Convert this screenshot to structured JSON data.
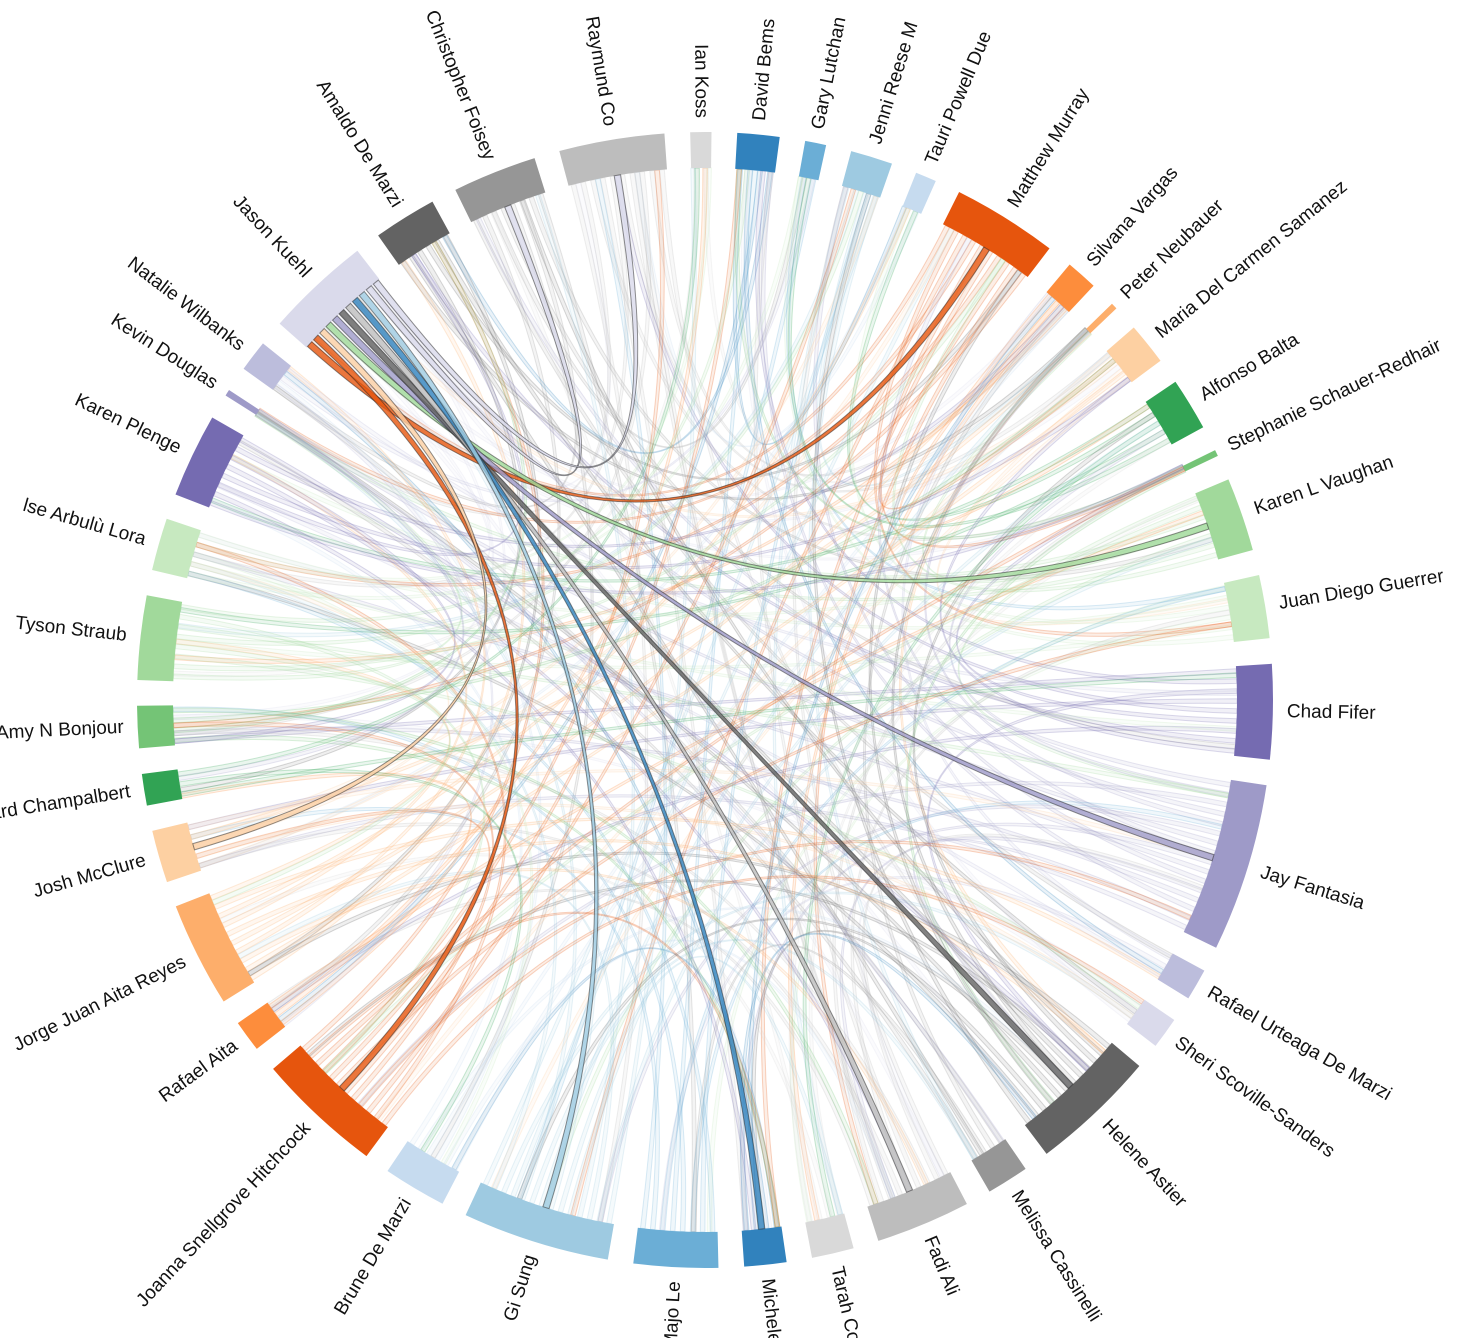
{
  "diagram": {
    "type": "chord",
    "nodes": [
      {
        "name": "Jason Kuehl",
        "color": "#dadaeb",
        "weight": 5
      },
      {
        "name": "Amaldo De Marzi",
        "color": "#636363",
        "weight": 3
      },
      {
        "name": "Christopher Foisey",
        "color": "#969696",
        "weight": 4
      },
      {
        "name": "Raymund Co",
        "color": "#bdbdbd",
        "weight": 5
      },
      {
        "name": "Ian Koss",
        "color": "#d9d9d9",
        "weight": 1
      },
      {
        "name": "David Bems",
        "color": "#3182bd",
        "weight": 2
      },
      {
        "name": "Gary Lutchan",
        "color": "#6baed6",
        "weight": 1
      },
      {
        "name": "Jenni Reese M",
        "color": "#9ecae1",
        "weight": 2
      },
      {
        "name": "Tauri Powell Due",
        "color": "#c6dbef",
        "weight": 1
      },
      {
        "name": "Matthew Murray",
        "color": "#e6550d",
        "weight": 5
      },
      {
        "name": "Silvana Vargas",
        "color": "#fd8d3c",
        "weight": 1.5
      },
      {
        "name": "Peter Neubauer",
        "color": "#fdae6b",
        "weight": 0.3
      },
      {
        "name": "Maria Del Carmen Samanez",
        "color": "#fdd0a2",
        "weight": 2
      },
      {
        "name": "Alfonso Balta",
        "color": "#31a354",
        "weight": 2.5
      },
      {
        "name": "Stephanie Schauer-Redhair",
        "color": "#74c476",
        "weight": 0.3
      },
      {
        "name": "Karen L Vaughan",
        "color": "#a1d99b",
        "weight": 3.5
      },
      {
        "name": "Juan Diego Guerrer",
        "color": "#c7e9c0",
        "weight": 3
      },
      {
        "name": "Chad Fifer",
        "color": "#756bb1",
        "weight": 4.5
      },
      {
        "name": "Jay Fantasia",
        "color": "#9e9ac8",
        "weight": 8
      },
      {
        "name": "Rafael Urteaga De Marzi",
        "color": "#bcbddc",
        "weight": 1.5
      },
      {
        "name": "Sheri Scoville-Sanders",
        "color": "#dadaeb",
        "weight": 1.5
      },
      {
        "name": "Helene Astier",
        "color": "#636363",
        "weight": 6
      },
      {
        "name": "Melissa Cassinelli",
        "color": "#969696",
        "weight": 2
      },
      {
        "name": "Fadi Ali",
        "color": "#bdbdbd",
        "weight": 4.5
      },
      {
        "name": "Tarah Cos",
        "color": "#d9d9d9",
        "weight": 2
      },
      {
        "name": "Michele L",
        "color": "#3182bd",
        "weight": 2
      },
      {
        "name": "Majo Le",
        "color": "#6baed6",
        "weight": 4
      },
      {
        "name": "Gi Sung",
        "color": "#9ecae1",
        "weight": 7
      },
      {
        "name": "Brune De Marzi",
        "color": "#c6dbef",
        "weight": 3
      },
      {
        "name": "Joanna Snellgrove Hitchcock",
        "color": "#e6550d",
        "weight": 6
      },
      {
        "name": "Rafael Aita",
        "color": "#fd8d3c",
        "weight": 1.5
      },
      {
        "name": "Jorge Juan Aita Reyes",
        "color": "#fdae6b",
        "weight": 5
      },
      {
        "name": "Josh McClure",
        "color": "#fdd0a2",
        "weight": 2.5
      },
      {
        "name": "ard Champalbert",
        "color": "#31a354",
        "weight": 1.5
      },
      {
        "name": "Amy N Bonjour",
        "color": "#74c476",
        "weight": 2
      },
      {
        "name": "Tyson Straub",
        "color": "#a1d99b",
        "weight": 4
      },
      {
        "name": "lse Arbulù Lora",
        "color": "#c7e9c0",
        "weight": 2.5
      },
      {
        "name": "Karen Plenge",
        "color": "#756bb1",
        "weight": 4
      },
      {
        "name": "Kevin Douglas",
        "color": "#9e9ac8",
        "weight": 0.3
      },
      {
        "name": "Natalie Wilbanks",
        "color": "#bcbddc",
        "weight": 1.5
      }
    ],
    "highlighted_links": [
      {
        "source": "Jason Kuehl",
        "target": "Matthew Murray",
        "color": "#e6550d"
      },
      {
        "source": "Jason Kuehl",
        "target": "Joanna Snellgrove Hitchcock",
        "color": "#e6550d"
      },
      {
        "source": "Jason Kuehl",
        "target": "Josh McClure",
        "color": "#fdd0a2"
      },
      {
        "source": "Jason Kuehl",
        "target": "Karen L Vaughan",
        "color": "#a1d99b"
      },
      {
        "source": "Jason Kuehl",
        "target": "Jay Fantasia",
        "color": "#9e9ac8"
      },
      {
        "source": "Jason Kuehl",
        "target": "Helene Astier",
        "color": "#636363"
      },
      {
        "source": "Jason Kuehl",
        "target": "Fadi Ali",
        "color": "#bdbdbd"
      },
      {
        "source": "Jason Kuehl",
        "target": "Michele L",
        "color": "#3182bd"
      },
      {
        "source": "Jason Kuehl",
        "target": "Gi Sung",
        "color": "#9ecae1"
      },
      {
        "source": "Jason Kuehl",
        "target": "Christopher Foisey",
        "color": "#dadaeb"
      },
      {
        "source": "Jason Kuehl",
        "target": "Raymund Co",
        "color": "#dadaeb"
      }
    ]
  }
}
